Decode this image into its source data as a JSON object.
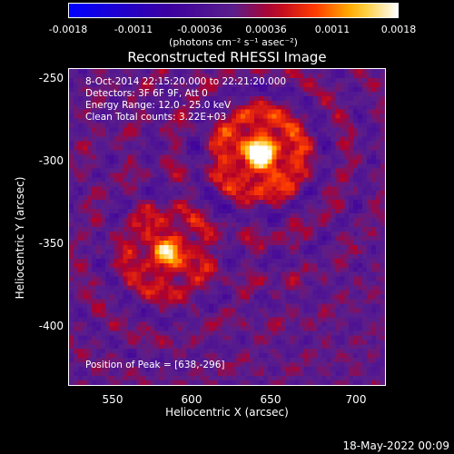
{
  "colorbar": {
    "ticks": [
      "-0.0018",
      "-0.0011",
      "-0.00036",
      "0.00036",
      "0.0011",
      "0.0018"
    ],
    "unit": "(photons cm⁻² s⁻¹ asec⁻²)"
  },
  "chart_data": {
    "type": "heatmap",
    "title": "Reconstructed RHESSI Image",
    "xlabel": "Heliocentric X (arcsec)",
    "ylabel": "Heliocentric Y (arcsec)",
    "xlim": [
      523,
      713
    ],
    "ylim": [
      -437,
      -245
    ],
    "xticks": [
      "550",
      "600",
      "650",
      "700"
    ],
    "yticks": [
      "-250",
      "-300",
      "-350",
      "-400"
    ],
    "zlim": [
      -0.0018,
      0.0018
    ],
    "colormap": "rhessi-hot",
    "sources": [
      {
        "x": 638,
        "y": -296,
        "peak": 0.0018
      },
      {
        "x": 582,
        "y": -357,
        "peak": 0.0012
      }
    ]
  },
  "annotations": {
    "time": "8-Oct-2014 22:15:20.000 to 22:21:20.000",
    "detectors": "Detectors: 3F 6F 9F, Att 0",
    "energy": "Energy Range: 12.0 - 25.0 keV",
    "clean": "Clean     Total counts: 3.22E+03",
    "peak": "Position of Peak = [638,-296]"
  },
  "stamp": "18-May-2022 00:09"
}
